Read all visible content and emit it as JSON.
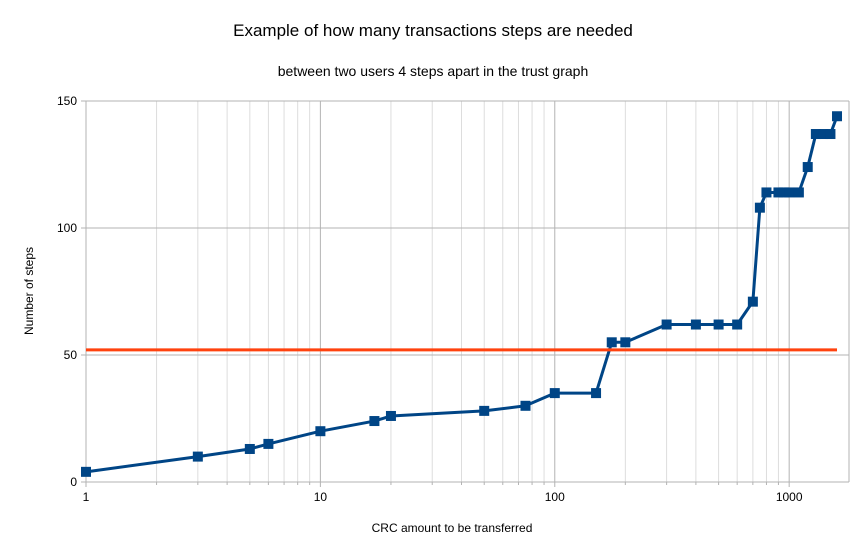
{
  "chart_data": {
    "type": "line",
    "title": "Example of how many transactions steps are needed",
    "subtitle": "between two users 4 steps apart in the trust graph",
    "xlabel": "CRC amount to be transferred",
    "ylabel": "Number of steps",
    "x_scale": "log",
    "xlim": [
      1,
      1800
    ],
    "ylim": [
      0,
      150
    ],
    "x_ticks": [
      1,
      10,
      100,
      1000
    ],
    "x_tick_labels": [
      "1",
      "10",
      "100",
      "1000"
    ],
    "y_ticks": [
      0,
      50,
      100,
      150
    ],
    "y_tick_labels": [
      "0",
      "50",
      "100",
      "150"
    ],
    "grid": true,
    "legend": "none",
    "series": [
      {
        "color": "#004586",
        "marker": "square",
        "x": [
          1,
          3,
          5,
          6,
          10,
          17,
          20,
          50,
          75,
          100,
          150,
          175,
          200,
          300,
          400,
          500,
          600,
          700,
          750,
          800,
          900,
          950,
          1000,
          1100,
          1200,
          1300,
          1400,
          1500,
          1600
        ],
        "y": [
          4,
          10,
          13,
          15,
          20,
          24,
          26,
          28,
          30,
          35,
          35,
          55,
          55,
          62,
          62,
          62,
          62,
          71,
          108,
          114,
          114,
          114,
          114,
          114,
          124,
          137,
          137,
          137,
          144
        ]
      },
      {
        "color": "#ff420e",
        "marker": "none",
        "x": [
          1,
          1600
        ],
        "y": [
          52,
          52
        ]
      }
    ]
  }
}
